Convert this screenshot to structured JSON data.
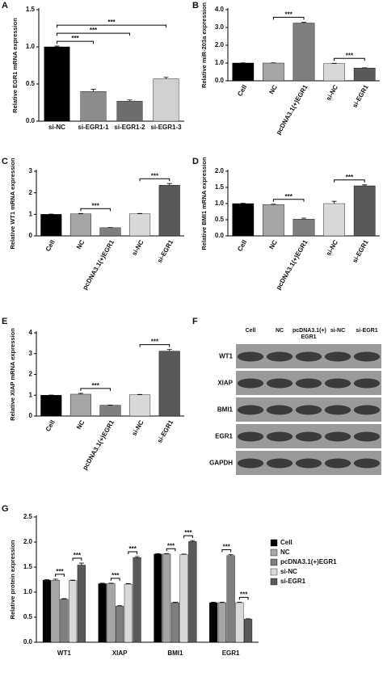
{
  "chart_data": [
    {
      "type": "bar",
      "label": "A",
      "ylabel": "Relative EGR1 mRNA expression",
      "categories": [
        "si-NC",
        "si-EGR1-1",
        "si-EGR1-2",
        "si-EGR1-3"
      ],
      "values": [
        1.0,
        0.4,
        0.27,
        0.57
      ],
      "errors": [
        0.01,
        0.03,
        0.015,
        0.02
      ],
      "colors": [
        "#000000",
        "#8c8c8c",
        "#6e6e6e",
        "#d0d0d0"
      ],
      "ylim": [
        0,
        1.5
      ],
      "yticks": [
        {
          "value": 0,
          "label": "0.0"
        },
        0.5,
        {
          "value": 1,
          "label": "1.0"
        },
        1.5
      ],
      "annotations": [
        {
          "text": "***",
          "between": [
            0,
            1
          ]
        },
        {
          "text": "***",
          "between": [
            0,
            2
          ]
        },
        {
          "text": "***",
          "between": [
            0,
            3
          ]
        }
      ]
    },
    {
      "type": "bar",
      "label": "B",
      "ylabel": "Relative miR-203a expression",
      "categories": [
        "Cell",
        "NC",
        "pcDNA3.1(+)EGR1",
        "si-NC",
        "si-EGR1"
      ],
      "values": [
        1.0,
        1.0,
        3.25,
        0.97,
        0.72
      ],
      "errors": [
        0.01,
        0.01,
        0.05,
        0.02,
        0.01
      ],
      "colors": [
        "#000000",
        "#a6a6a6",
        "#7f7f7f",
        "#d9d9d9",
        "#595959"
      ],
      "ylim": [
        0,
        4
      ],
      "yticks": [
        {
          "value": 0,
          "label": "0.0"
        },
        {
          "value": 1,
          "label": "1.0"
        },
        {
          "value": 2,
          "label": "2.0"
        },
        {
          "value": 3,
          "label": "3.0"
        },
        {
          "value": 4,
          "label": "4.0"
        }
      ],
      "annotations": [
        {
          "text": "***",
          "between": [
            1,
            2
          ]
        },
        {
          "text": "***",
          "between": [
            3,
            4
          ]
        }
      ]
    },
    {
      "type": "bar",
      "label": "C",
      "ylabel": "Relative WT1 mRNA expression",
      "categories": [
        "Cell",
        "NC",
        "pcDNA3.1(+)EGR1",
        "si-NC",
        "si-EGR1"
      ],
      "values": [
        1.0,
        1.02,
        0.38,
        1.02,
        2.35
      ],
      "errors": [
        0.01,
        0.02,
        0.01,
        0.02,
        0.08
      ],
      "colors": [
        "#000000",
        "#a6a6a6",
        "#7f7f7f",
        "#d9d9d9",
        "#595959"
      ],
      "ylim": [
        0,
        3
      ],
      "yticks": [
        0,
        1,
        2,
        3
      ],
      "annotations": [
        {
          "text": "***",
          "between": [
            1,
            2
          ]
        },
        {
          "text": "***",
          "between": [
            3,
            4
          ]
        }
      ]
    },
    {
      "type": "bar",
      "label": "D",
      "ylabel": "Relative BMI1 mRNA expression",
      "categories": [
        "Cell",
        "NC",
        "pcDNA3.1(+)EGR1",
        "si-NC",
        "si-EGR1"
      ],
      "values": [
        1.0,
        0.97,
        0.52,
        1.0,
        1.55
      ],
      "errors": [
        0.01,
        0.01,
        0.03,
        0.07,
        0.03
      ],
      "colors": [
        "#000000",
        "#a6a6a6",
        "#7f7f7f",
        "#d9d9d9",
        "#595959"
      ],
      "ylim": [
        0,
        2
      ],
      "yticks": [
        {
          "value": 0,
          "label": "0.0"
        },
        0.5,
        {
          "value": 1,
          "label": "1.0"
        },
        1.5,
        {
          "value": 2,
          "label": "2.0"
        }
      ],
      "annotations": [
        {
          "text": "***",
          "between": [
            1,
            2
          ]
        },
        {
          "text": "***",
          "between": [
            3,
            4
          ]
        }
      ]
    },
    {
      "type": "bar",
      "label": "E",
      "ylabel": "Relative XIAP mRNA expression",
      "categories": [
        "Cell",
        "NC",
        "pcDNA3.1(+)EGR1",
        "si-NC",
        "si-EGR1"
      ],
      "values": [
        1.0,
        1.05,
        0.52,
        1.02,
        3.12
      ],
      "errors": [
        0.01,
        0.04,
        0.01,
        0.02,
        0.08
      ],
      "colors": [
        "#000000",
        "#a6a6a6",
        "#7f7f7f",
        "#d9d9d9",
        "#595959"
      ],
      "ylim": [
        0,
        4
      ],
      "yticks": [
        0,
        1,
        2,
        3,
        4
      ],
      "annotations": [
        {
          "text": "***",
          "between": [
            1,
            2
          ]
        },
        {
          "text": "***",
          "between": [
            3,
            4
          ]
        }
      ]
    },
    {
      "type": "grouped_bar",
      "label": "G",
      "ylabel": "Relative protein expression",
      "categories": [
        "WT1",
        "XIAP",
        "BMI1",
        "EGR1"
      ],
      "series": [
        {
          "name": "Cell",
          "color": "#000000",
          "values": [
            1.24,
            1.17,
            1.76,
            0.79
          ],
          "errors": [
            0.01,
            0.01,
            0.01,
            0.01
          ]
        },
        {
          "name": "NC",
          "color": "#a6a6a6",
          "values": [
            1.24,
            1.17,
            1.76,
            0.79
          ],
          "errors": [
            0.02,
            0.01,
            0.01,
            0.01
          ]
        },
        {
          "name": "pcDNA3.1(+)EGR1",
          "color": "#7f7f7f",
          "values": [
            0.86,
            0.72,
            0.79,
            1.73
          ],
          "errors": [
            0.01,
            0.01,
            0.01,
            0.02
          ]
        },
        {
          "name": "si-NC",
          "color": "#d9d9d9",
          "values": [
            1.23,
            1.16,
            1.75,
            0.79
          ],
          "errors": [
            0.01,
            0.01,
            0.01,
            0.01
          ]
        },
        {
          "name": "si-EGR1",
          "color": "#595959",
          "values": [
            1.54,
            1.69,
            2.01,
            0.46
          ],
          "errors": [
            0.04,
            0.02,
            0.02,
            0.01
          ]
        }
      ],
      "ylim": [
        0,
        2.5
      ],
      "yticks": [
        {
          "value": 0,
          "label": "0.0"
        },
        0.5,
        {
          "value": 1,
          "label": "1.0"
        },
        1.5,
        {
          "value": 2,
          "label": "2.0"
        },
        2.5
      ],
      "annotations": [
        {
          "text": "***",
          "category": 0,
          "between": [
            1,
            2
          ]
        },
        {
          "text": "***",
          "category": 0,
          "between": [
            3,
            4
          ]
        },
        {
          "text": "***",
          "category": 1,
          "between": [
            1,
            2
          ]
        },
        {
          "text": "***",
          "category": 1,
          "between": [
            3,
            4
          ]
        },
        {
          "text": "***",
          "category": 2,
          "between": [
            1,
            2
          ]
        },
        {
          "text": "***",
          "category": 2,
          "between": [
            3,
            4
          ]
        },
        {
          "text": "***",
          "category": 3,
          "between": [
            1,
            2
          ]
        },
        {
          "text": "***",
          "category": 3,
          "between": [
            3,
            4
          ]
        }
      ]
    }
  ],
  "blot": {
    "label": "F",
    "lanes": [
      "Cell",
      "NC",
      "pcDNA3.1(+) EGR1",
      "si-NC",
      "si-EGR1"
    ],
    "rows": [
      "WT1",
      "XIAP",
      "BMI1",
      "EGR1",
      "GAPDH"
    ]
  }
}
